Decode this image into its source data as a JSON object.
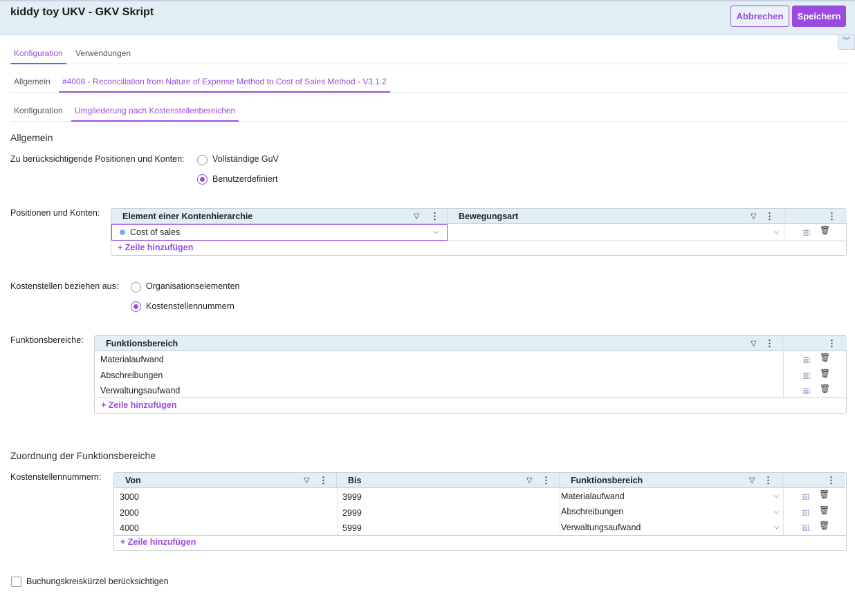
{
  "header": {
    "title": "kiddy toy UKV - GKV Skript",
    "cancel_label": "Abbrechen",
    "save_label": "Speichern",
    "collapse_icon": "chevrons-down-icon"
  },
  "tabs_main": [
    {
      "label": "Konfiguration",
      "active": true
    },
    {
      "label": "Verwendungen",
      "active": false
    }
  ],
  "tabs_sub": [
    {
      "label": "Allgemein",
      "active": false
    },
    {
      "label": "#4008 - Reconciliation from Nature of Expense Method to Cost of Sales Method - V3.1.2",
      "active": true
    }
  ],
  "tabs_inner": [
    {
      "label": "Konfiguration",
      "active": false
    },
    {
      "label": "Umgliederung nach Kostenstellenbereichen",
      "active": true
    }
  ],
  "section_general": {
    "title": "Allgemein",
    "positions_label": "Zu berücksichtigende Positionen und Konten:",
    "options": [
      {
        "label": "Vollständige GuV",
        "selected": false
      },
      {
        "label": "Benutzerdefiniert",
        "selected": true
      }
    ]
  },
  "positions_grid": {
    "label": "Positionen und Konten:",
    "columns": [
      "Element einer Kontenhierarchie",
      "Bewegungsart"
    ],
    "rows": [
      {
        "element": "Cost of sales",
        "bewegungsart": ""
      }
    ],
    "add_label": "Zeile hinzufügen"
  },
  "cost_center_source": {
    "label": "Kostenstellen beziehen aus:",
    "options": [
      {
        "label": "Organisationselementen",
        "selected": false
      },
      {
        "label": "Kostenstellennummern",
        "selected": true
      }
    ]
  },
  "functional_areas": {
    "label": "Funktionsbereiche:",
    "columns": [
      "Funktionsbereich"
    ],
    "rows": [
      "Materialaufwand",
      "Abschreibungen",
      "Verwaltungsaufwand"
    ],
    "add_label": "Zeile hinzufügen"
  },
  "assignment": {
    "title": "Zuordnung der Funktionsbereiche",
    "label": "Kostenstellennummern:",
    "columns": [
      "Von",
      "Bis",
      "Funktionsbereich"
    ],
    "rows": [
      {
        "von": "3000",
        "bis": "3999",
        "bereich": "Materialaufwand"
      },
      {
        "von": "2000",
        "bis": "2999",
        "bereich": "Abschreibungen"
      },
      {
        "von": "4000",
        "bis": "5999",
        "bereich": "Verwaltungsaufwand"
      }
    ],
    "add_label": "Zeile hinzufügen"
  },
  "checkbox": {
    "label": "Buchungskreiskürzel berücksichtigen",
    "checked": false
  },
  "colors": {
    "accent": "#9b4be0",
    "header_bg": "#e1eff5"
  }
}
